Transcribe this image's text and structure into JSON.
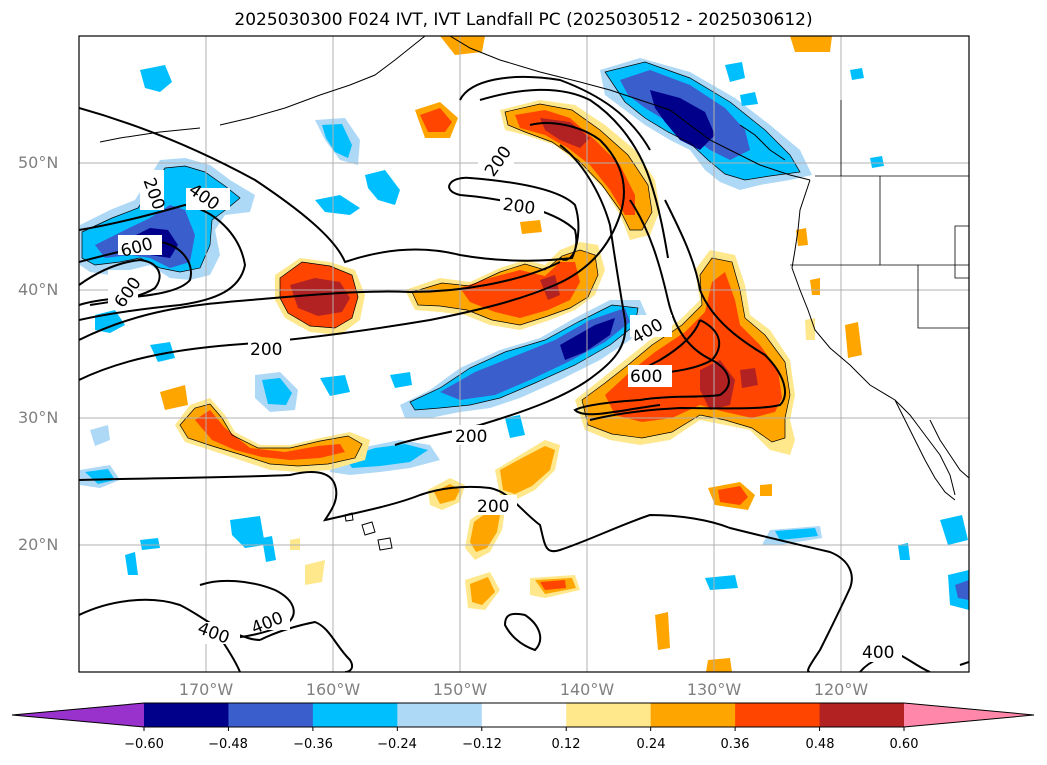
{
  "title": "2025030300 F024 IVT, IVT Landfall PC (2025030512 - 2025030612)",
  "lat_labels": [
    "50°N",
    "40°N",
    "30°N",
    "20°N"
  ],
  "lon_labels": [
    "170°W",
    "160°W",
    "150°W",
    "140°W",
    "130°W",
    "120°W"
  ],
  "contour_labels": [
    "200",
    "200",
    "200",
    "200",
    "200",
    "200",
    "400",
    "400",
    "400",
    "400",
    "400",
    "600",
    "600",
    "600"
  ],
  "colorbar": {
    "ticks": [
      "−0.60",
      "−0.48",
      "−0.36",
      "−0.24",
      "−0.12",
      "0.12",
      "0.24",
      "0.36",
      "0.48",
      "0.60"
    ],
    "colors": [
      "#9932cc",
      "#00008b",
      "#3a5fcd",
      "#00bfff",
      "#add8f6",
      "#ffffff",
      "#ffe78c",
      "#ffa500",
      "#ff4500",
      "#b22222",
      "#ff88aa"
    ]
  },
  "colors": {
    "contour": "#000000",
    "grid": "#b0b0b0",
    "coast": "#000000"
  }
}
